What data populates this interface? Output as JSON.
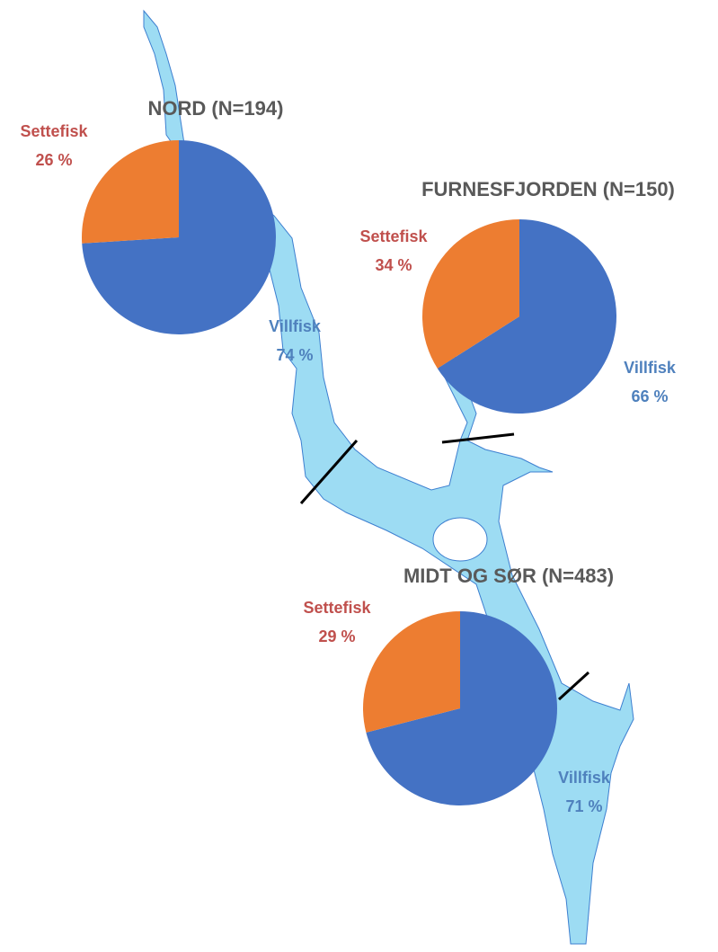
{
  "chart_data": [
    {
      "type": "pie",
      "title": "NORD (N=194)",
      "categories": [
        "Villfisk",
        "Settefisk"
      ],
      "values": [
        74,
        26
      ],
      "value_labels": [
        "74 %",
        "26 %"
      ],
      "colors": [
        "#4472c4",
        "#ed7d31"
      ]
    },
    {
      "type": "pie",
      "title": "FURNESFJORDEN (N=150)",
      "categories": [
        "Villfisk",
        "Settefisk"
      ],
      "values": [
        66,
        34
      ],
      "value_labels": [
        "66 %",
        "34 %"
      ],
      "colors": [
        "#4472c4",
        "#ed7d31"
      ]
    },
    {
      "type": "pie",
      "title": "MIDT OG SØR (N=483)",
      "categories": [
        "Villfisk",
        "Settefisk"
      ],
      "values": [
        71,
        29
      ],
      "value_labels": [
        "71 %",
        "29 %"
      ],
      "colors": [
        "#4472c4",
        "#ed7d31"
      ]
    }
  ]
}
